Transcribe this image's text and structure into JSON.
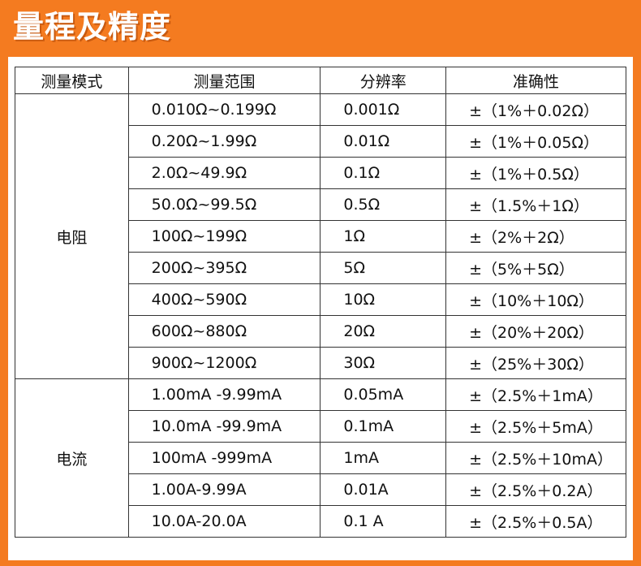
{
  "header": {
    "title": "量程及精度"
  },
  "table": {
    "columns": [
      "测量模式",
      "测量范围",
      "分辨率",
      "准确性"
    ],
    "groups": [
      {
        "mode": "电阻",
        "rows": [
          [
            "0.010Ω~0.199Ω",
            "0.001Ω",
            "±（1%＋0.02Ω）"
          ],
          [
            "0.20Ω~1.99Ω",
            "0.01Ω",
            "±（1%＋0.05Ω）"
          ],
          [
            "2.0Ω~49.9Ω",
            "0.1Ω",
            "±（1%＋0.5Ω）"
          ],
          [
            "50.0Ω~99.5Ω",
            "0.5Ω",
            "±（1.5%＋1Ω）"
          ],
          [
            "100Ω~199Ω",
            "1Ω",
            "±（2%＋2Ω）"
          ],
          [
            "200Ω~395Ω",
            "5Ω",
            "±（5%＋5Ω）"
          ],
          [
            "400Ω~590Ω",
            "10Ω",
            "±（10%＋10Ω）"
          ],
          [
            "600Ω~880Ω",
            "20Ω",
            "±（20%＋20Ω）"
          ],
          [
            "900Ω~1200Ω",
            "30Ω",
            "±（25%＋30Ω）"
          ]
        ]
      },
      {
        "mode": "电流",
        "rows": [
          [
            "1.00mA -9.99mA",
            "0.05mA",
            "±（2.5%＋1mA）"
          ],
          [
            "10.0mA -99.9mA",
            "0.1mA",
            "±（2.5%＋5mA）"
          ],
          [
            "100mA -999mA",
            "1mA",
            "±（2.5%＋10mA）"
          ],
          [
            "1.00A-9.99A",
            "0.01A",
            "±（2.5%＋0.2A）"
          ],
          [
            "10.0A-20.0A",
            "0.1 A",
            "±（2.5%＋0.5A）"
          ]
        ]
      }
    ]
  }
}
